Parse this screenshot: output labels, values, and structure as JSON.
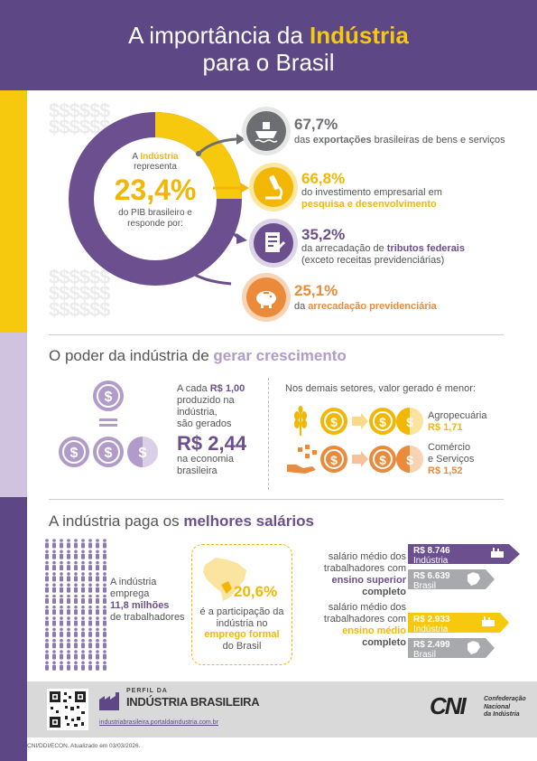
{
  "header": {
    "title_part1": "A importância da ",
    "title_highlight": "Indústria",
    "title_line2": "para o Brasil"
  },
  "section1": {
    "circle": {
      "intro_prefix": "A ",
      "intro_highlight": "Indústria",
      "intro_suffix": "representa",
      "percent": "23,4%",
      "outro": "do PIB brasileiro e responde por:"
    },
    "stats": [
      {
        "value": "67,7%",
        "pre": "das ",
        "bold": "exportações",
        "post": " brasileiras de bens e serviços",
        "line2": ""
      },
      {
        "value": "66,8%",
        "pre": "do investimento empresarial em",
        "bold": "pesquisa e desenvolvimento",
        "post": "",
        "line2": ""
      },
      {
        "value": "35,2%",
        "pre": "da arrecadação de ",
        "bold": "tributos federais",
        "post": "",
        "line2": "(exceto receitas previdenciárias)"
      },
      {
        "value": "25,1%",
        "pre": "da ",
        "bold": "arrecadação previdenciária",
        "post": "",
        "line2": ""
      }
    ],
    "colors": {
      "purple": "#6b4f8e",
      "yellow": "#f2b705",
      "orange": "#ea8a3a",
      "gray": "#6d6e71"
    }
  },
  "section2": {
    "title_plain": "O poder da indústria de ",
    "title_highlight": "gerar crescimento",
    "left_line1_pre": "A cada ",
    "left_line1_value": "R$ 1,00",
    "left_line2": "produzido na",
    "left_line3": "indústria,",
    "left_line4": "são gerados",
    "big_value": "R$ 2,44",
    "left_line5": "na economia",
    "left_line6": "brasileira",
    "right_heading": "Nos demais setores, valor gerado é menor:",
    "sectors": [
      {
        "name": "Agropecuária",
        "name_line2": "",
        "value": "R$ 1,71"
      },
      {
        "name": "Comércio",
        "name_line2": "e Serviços",
        "value": "R$ 1,52"
      }
    ]
  },
  "section3": {
    "title_plain": "A indústria paga os ",
    "title_highlight": "melhores salários",
    "employ_line1": "A indústria",
    "employ_line2": "emprega",
    "employ_value": "11,8 milhões",
    "employ_line3": "de trabalhadores",
    "formal_percent": "20,6%",
    "formal_line1": "é a participação da",
    "formal_line2": "indústria no",
    "formal_bold": "emprego formal",
    "formal_line3": "do Brasil",
    "salary_groups": [
      {
        "label_line1": "salário médio dos",
        "label_line2": "trabalhadores com",
        "label_bold1": "ensino superior",
        "label_bold2": "completo",
        "industria_value": "R$ 8.746",
        "industria_label": "Indústria",
        "brasil_value": "R$ 6.639",
        "brasil_label": "Brasil"
      },
      {
        "label_line1": "salário médio dos",
        "label_line2": "trabalhadores com",
        "label_bold1": "ensino médio",
        "label_bold2": "completo",
        "industria_value": "R$ 2.933",
        "industria_label": "Indústria",
        "brasil_value": "R$ 2.499",
        "brasil_label": "Brasil"
      }
    ]
  },
  "footer": {
    "brand_small": "PERFIL DA",
    "brand_big": "INDÚSTRIA BRASILEIRA",
    "url": "industriabrasileira.portaldaindustria.com.br",
    "cni_logo": "CNI",
    "cni_line1": "Confederação",
    "cni_line2": "Nacional",
    "cni_line3": "da Indústria",
    "note": "CNI/DDI/ECON. Atualizado em 03/03/2026."
  }
}
